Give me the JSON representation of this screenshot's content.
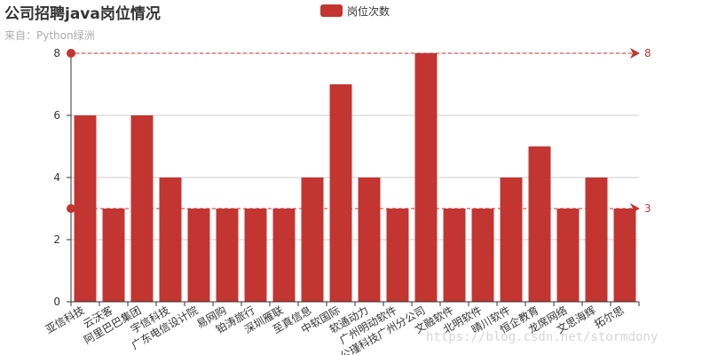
{
  "chart_data": {
    "type": "bar",
    "title": "公司招聘java岗位情况",
    "subtitle": "来自：Python绿洲",
    "legend": {
      "entries": [
        "岗位次数"
      ],
      "placement": "top-center"
    },
    "categories": [
      "亚信科技",
      "云沃客",
      "阿里巴巴集团",
      "宇信科技",
      "广东电信设计院",
      "易网购",
      "铂涛旅行",
      "深圳雁联",
      "至真信息",
      "中软国际",
      "软通动力",
      "广州明动软件",
      "公瑾科技广州分公司",
      "文融软件",
      "北明软件",
      "晴川软件",
      "恒企教育",
      "龙席网络",
      "文思海辉",
      "拓尔思"
    ],
    "series": [
      {
        "name": "岗位次数",
        "values": [
          6,
          3,
          6,
          4,
          3,
          3,
          3,
          3,
          4,
          7,
          4,
          3,
          8,
          3,
          3,
          4,
          5,
          3,
          4,
          3
        ]
      }
    ],
    "ylim": [
      0,
      8
    ],
    "y_ticks": [
      "0",
      "2",
      "4",
      "6",
      "8"
    ],
    "grid": "horizontal",
    "mark_lines": [
      {
        "value": 8,
        "label": "8"
      },
      {
        "value": 3,
        "label": "3"
      }
    ],
    "colors": {
      "bar": "#c23531",
      "axis": "#333333",
      "grid": "#cccccc"
    }
  },
  "watermark": "https://blog.csdn.net/stormdony"
}
